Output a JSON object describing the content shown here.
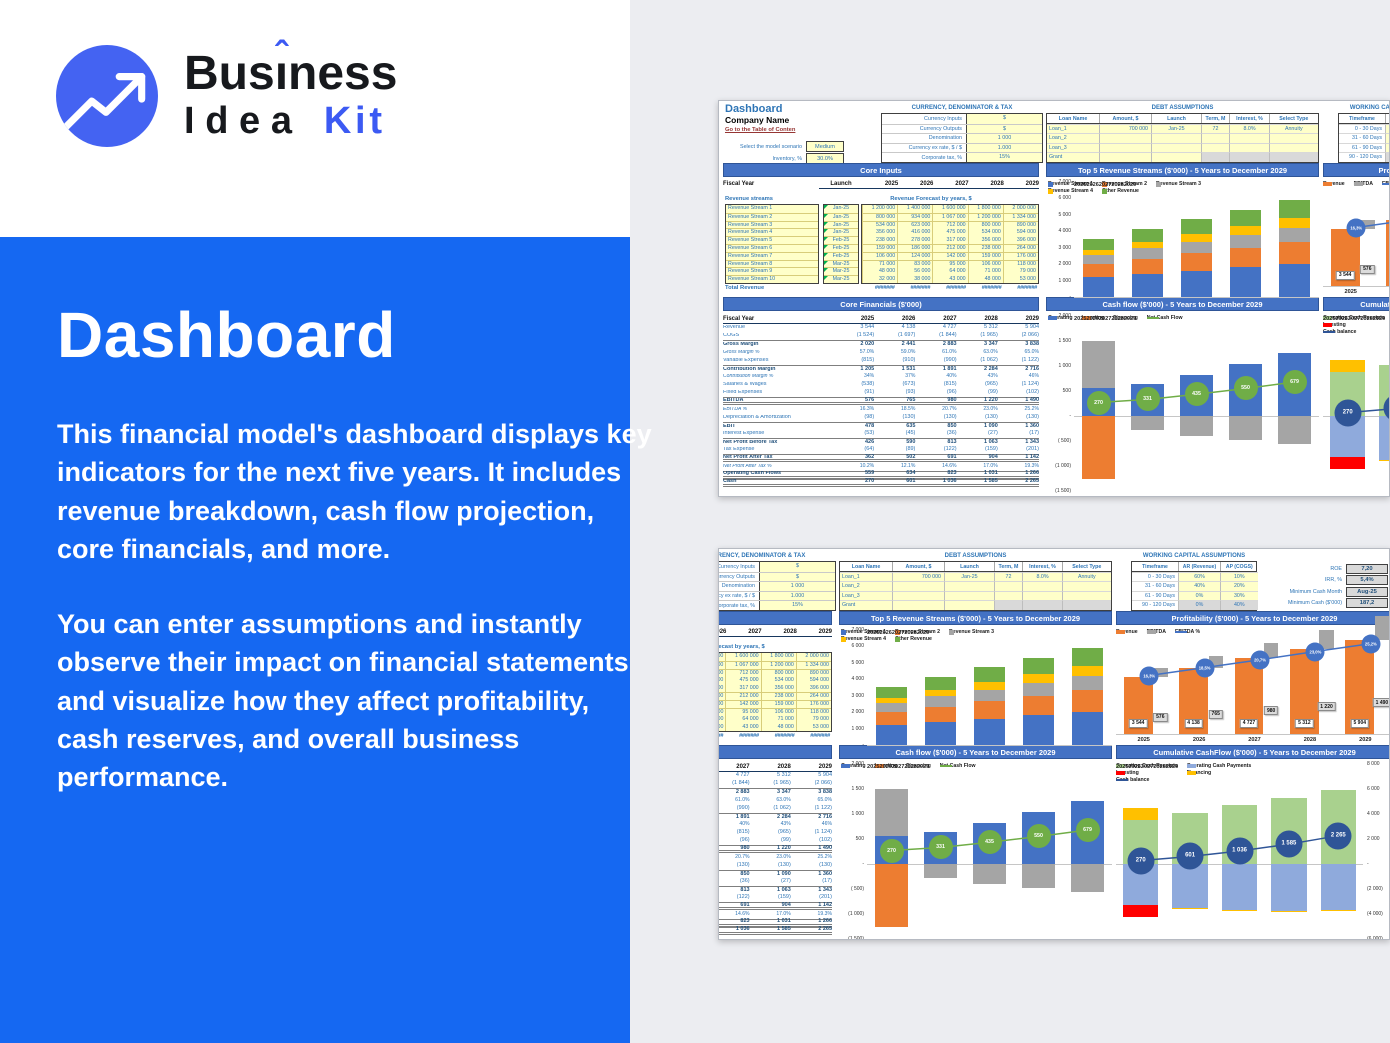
{
  "logo": {
    "business": "Business",
    "business_pre": "Bus",
    "business_i": "ı",
    "business_post": "ness",
    "idea": "Idea",
    "kit": "Kit",
    "accent_color": "#3C5AF3"
  },
  "hero": {
    "title": "Dashboard",
    "paragraph1": "This financial model's dashboard displays key indicators for the next five years. It includes revenue breakdown, cash flow projection, core financials, and more.",
    "paragraph2": "You can enter assumptions and instantly observe their impact on financial statements and visualize how they affect profitability, cash reserves, and overall business performance.",
    "panel_color": "#1568F2"
  },
  "dashboard": {
    "title": "Dashboard",
    "company": "Company Name",
    "toc_link": "Go to the Table of Conten",
    "scenario_label": "Select the model scenario",
    "scenario_value": "Medium",
    "inventory_label": "Inventory, %",
    "inventory_value": "30.0%",
    "currency_box": {
      "title": "CURRENCY, DENOMINATOR & TAX",
      "rows": [
        [
          "Currency Inputs",
          "$"
        ],
        [
          "Currency Outputs",
          "$"
        ],
        [
          "Denomination",
          "1 000"
        ],
        [
          "Currency ex rate, $ / $",
          "1.000"
        ],
        [
          "Corporate tax, %",
          "15%"
        ]
      ]
    },
    "debt_box": {
      "title": "DEBT ASSUMPTIONS",
      "headers": [
        "Loan Name",
        "Amount, $",
        "Launch",
        "Term, M",
        "Interest, %",
        "Select Type"
      ],
      "rows": [
        [
          "Loan_1",
          "700 000",
          "Jan-25",
          "72",
          "8.0%",
          "Annuity"
        ],
        [
          "Loan_2",
          "",
          "",
          "",
          "",
          ""
        ],
        [
          "Loan_3",
          "",
          "",
          "",
          "",
          ""
        ],
        [
          "Grant",
          "",
          "",
          "",
          "",
          ""
        ]
      ]
    },
    "wc_box": {
      "title": "WORKING CAPITAL ASSUMPTIONS",
      "headers": [
        "Timeframe",
        "AR (Revenue)",
        "AP (COGS)"
      ],
      "rows": [
        [
          "0 - 30 Days",
          "60%",
          "10%"
        ],
        [
          "31 - 60 Days",
          "40%",
          "20%"
        ],
        [
          "61 - 90 Days",
          "0%",
          "30%"
        ],
        [
          "90 - 120 Days",
          "0%",
          "40%"
        ]
      ]
    },
    "kpis": [
      [
        "ROE",
        "7,20"
      ],
      [
        "IRR, %",
        "5,4%"
      ],
      [
        "Minimum Cash Month",
        "Aug-25"
      ],
      [
        "Minimum Cash ($'000)",
        "187,2"
      ]
    ],
    "sections": {
      "core_inputs": "Core Inputs",
      "core_financials": "Core Financials ($'000)"
    },
    "core_inputs": {
      "fiscal_label": "Fiscal Year",
      "launch_label": "Launch",
      "years": [
        "2025",
        "2026",
        "2027",
        "2028",
        "2029"
      ],
      "streams_label": "Revenue streams",
      "forecast_label": "Revenue Forecast by years, $",
      "rows": [
        {
          "name": "Revenue Stream 1",
          "launch": "Jan-25",
          "values": [
            "1 200 000",
            "1 400 000",
            "1 600 000",
            "1 800 000",
            "2 000 000"
          ]
        },
        {
          "name": "Revenue Stream 2",
          "launch": "Jan-25",
          "values": [
            "800 000",
            "934 000",
            "1 067 000",
            "1 200 000",
            "1 334 000"
          ]
        },
        {
          "name": "Revenue Stream 3",
          "launch": "Jan-25",
          "values": [
            "534 000",
            "623 000",
            "712 000",
            "800 000",
            "890 000"
          ]
        },
        {
          "name": "Revenue Stream 4",
          "launch": "Jan-25",
          "values": [
            "356 000",
            "416 000",
            "475 000",
            "534 000",
            "594 000"
          ]
        },
        {
          "name": "Revenue Stream 5",
          "launch": "Feb-25",
          "values": [
            "238 000",
            "278 000",
            "317 000",
            "356 000",
            "396 000"
          ]
        },
        {
          "name": "Revenue Stream 6",
          "launch": "Feb-25",
          "values": [
            "159 000",
            "186 000",
            "212 000",
            "238 000",
            "264 000"
          ]
        },
        {
          "name": "Revenue Stream 7",
          "launch": "Feb-25",
          "values": [
            "106 000",
            "124 000",
            "142 000",
            "159 000",
            "176 000"
          ]
        },
        {
          "name": "Revenue Stream 8",
          "launch": "Mar-25",
          "values": [
            "71 000",
            "83 000",
            "95 000",
            "106 000",
            "118 000"
          ]
        },
        {
          "name": "Revenue Stream 9",
          "launch": "Mar-25",
          "values": [
            "48 000",
            "56 000",
            "64 000",
            "71 000",
            "79 000"
          ]
        },
        {
          "name": "Revenue Stream 10",
          "launch": "Mar-25",
          "values": [
            "32 000",
            "38 000",
            "43 000",
            "48 000",
            "53 000"
          ]
        }
      ],
      "total_label": "Total Revenue",
      "total_values": [
        "#######",
        "#######",
        "#######",
        "#######",
        "#######"
      ]
    },
    "core_financials": {
      "fiscal_label": "Fiscal Year",
      "years": [
        "2025",
        "2026",
        "2027",
        "2028",
        "2029"
      ],
      "rows": [
        {
          "label": "Revenue",
          "cls": "",
          "values": [
            "3 544",
            "4 138",
            "4 727",
            "5 312",
            "5 904"
          ]
        },
        {
          "label": "COGS",
          "cls": "",
          "values": [
            "(1 524)",
            "(1 697)",
            "(1 844)",
            "(1 965)",
            "(2 066)"
          ]
        },
        {
          "label": "Gross Margin",
          "cls": "bold",
          "values": [
            "2 020",
            "2 441",
            "2 883",
            "3 347",
            "3 838"
          ]
        },
        {
          "label": "Gross Margin %",
          "cls": "pct",
          "values": [
            "57.0%",
            "59.0%",
            "61.0%",
            "63.0%",
            "65.0%"
          ]
        },
        {
          "label": "Variable Expenses",
          "cls": "",
          "values": [
            "(815)",
            "(910)",
            "(990)",
            "(1 062)",
            "(1 122)"
          ]
        },
        {
          "label": "Contribution Margin",
          "cls": "bold",
          "values": [
            "1 205",
            "1 531",
            "1 891",
            "2 284",
            "2 716"
          ]
        },
        {
          "label": "Contribution Margin %",
          "cls": "pct",
          "values": [
            "34%",
            "37%",
            "40%",
            "43%",
            "46%"
          ]
        },
        {
          "label": "Salaries & Wages",
          "cls": "",
          "values": [
            "(538)",
            "(673)",
            "(815)",
            "(965)",
            "(1 124)"
          ]
        },
        {
          "label": "Fixed Expenses",
          "cls": "",
          "values": [
            "(91)",
            "(93)",
            "(96)",
            "(99)",
            "(102)"
          ]
        },
        {
          "label": "EBITDA",
          "cls": "strong",
          "values": [
            "576",
            "765",
            "980",
            "1 220",
            "1 490"
          ]
        },
        {
          "label": "EBITDA %",
          "cls": "pct",
          "values": [
            "16.3%",
            "18.5%",
            "20.7%",
            "23.0%",
            "25.2%"
          ]
        },
        {
          "label": "Depreciation & Amortization",
          "cls": "",
          "values": [
            "(98)",
            "(130)",
            "(130)",
            "(130)",
            "(130)"
          ]
        },
        {
          "label": "EBIT",
          "cls": "bold",
          "values": [
            "478",
            "635",
            "850",
            "1 090",
            "1 360"
          ]
        },
        {
          "label": "Interest Expense",
          "cls": "",
          "values": [
            "(53)",
            "(45)",
            "(36)",
            "(27)",
            "(17)"
          ]
        },
        {
          "label": "Net Profit Before Tax",
          "cls": "bold",
          "values": [
            "426",
            "590",
            "813",
            "1 063",
            "1 343"
          ]
        },
        {
          "label": "Tax Expense",
          "cls": "",
          "values": [
            "(64)",
            "(89)",
            "(122)",
            "(159)",
            "(201)"
          ]
        },
        {
          "label": "Net Profit After Tax",
          "cls": "strong",
          "values": [
            "362",
            "502",
            "691",
            "904",
            "1 142"
          ]
        },
        {
          "label": "Net Profit After Tax %",
          "cls": "pct",
          "values": [
            "10.2%",
            "12.1%",
            "14.6%",
            "17.0%",
            "19.3%"
          ]
        },
        {
          "label": "Operating Cash Flows",
          "cls": "strong",
          "values": [
            "559",
            "634",
            "823",
            "1 031",
            "1 266"
          ]
        },
        {
          "label": "Cash",
          "cls": "strong",
          "values": [
            "270",
            "601",
            "1 036",
            "1 585",
            "2 265"
          ]
        }
      ]
    }
  },
  "chart_data": [
    {
      "id": "top5_revenue",
      "type": "bar",
      "stacked": true,
      "title": "Top 5 Revenue Streams ($'000) - 5 Years to December 2029",
      "categories": [
        "2025",
        "2026",
        "2027",
        "2028",
        "2029"
      ],
      "series": [
        {
          "name": "Revenue Stream 1",
          "color": "#4472C4",
          "values": [
            1200,
            1400,
            1600,
            1800,
            2000
          ]
        },
        {
          "name": "Revenue Stream 2",
          "color": "#ED7D31",
          "values": [
            800,
            934,
            1067,
            1200,
            1334
          ]
        },
        {
          "name": "Revenue Stream 3",
          "color": "#A5A5A5",
          "values": [
            534,
            623,
            712,
            800,
            890
          ]
        },
        {
          "name": "Revenue Stream 4",
          "color": "#FFC000",
          "values": [
            356,
            416,
            475,
            534,
            594
          ]
        },
        {
          "name": "Other Revenue",
          "color": "#70AD47",
          "values": [
            654,
            765,
            873,
            978,
            1086
          ]
        }
      ],
      "ylim": [
        0,
        7000
      ],
      "yticks": [
        "7 000",
        "6 000",
        "5 000",
        "4 000",
        "3 000",
        "2 000",
        "1 000",
        "-"
      ],
      "axis": "left",
      "marker": "sq",
      "legend_cols": 3,
      "bw": 0.62
    },
    {
      "id": "profitability",
      "type": "bar",
      "stacked": false,
      "grouped": true,
      "title": "Profitability ($'000) - 5 Years to December 2029",
      "categories": [
        "2025",
        "2026",
        "2027",
        "2028",
        "2029"
      ],
      "series": [
        {
          "name": "Revenue",
          "color": "#ED7D31",
          "values": [
            3544,
            4138,
            4727,
            5312,
            5904
          ],
          "labels": [
            "3 544",
            "4 138",
            "4 727",
            "5 312",
            "5 904"
          ],
          "off": 0.4,
          "bw": 0.52
        },
        {
          "name": "EBITDA",
          "color": "#A5A5A5",
          "values": [
            576,
            765,
            980,
            1220,
            1490
          ],
          "labels": [
            "576",
            "765",
            "980",
            "1 220",
            "1 490"
          ],
          "off": 0.8,
          "bw": 0.26,
          "label_pos": "top",
          "label_bg": "#DCDCDC"
        }
      ],
      "line": {
        "name": "EBITDA %",
        "color": "#4472C4",
        "values": [
          16.3,
          18.5,
          20.7,
          23.0,
          25.2
        ],
        "labels": [
          "16,3%",
          "18,5%",
          "20,7%",
          "23,0%",
          "25,2%"
        ],
        "ylim": [
          0,
          29
        ],
        "bub": 19,
        "xoff": 0.6
      },
      "ylim": [
        0,
        6500
      ],
      "axis": "none",
      "legend_cols": 3
    },
    {
      "id": "cashflow",
      "type": "bar",
      "stacked": true,
      "title": "Cash flow ($'000) - 5 Years to December 2029",
      "categories": [
        "2025",
        "2026",
        "2027",
        "2028",
        "2029"
      ],
      "series": [
        {
          "name": "Operating",
          "color": "#4472C4",
          "values": [
            559,
            634,
            823,
            1031,
            1266
          ]
        },
        {
          "name": "Investing",
          "color": "#ED7D31",
          "values": [
            -1250,
            0,
            0,
            0,
            0
          ]
        },
        {
          "name": "Financing",
          "color": "#A5A5A5",
          "values": [
            940,
            -280,
            -400,
            -480,
            -560
          ]
        }
      ],
      "line": {
        "name": "Net Cash Flow",
        "color": "#70AD47",
        "values": [
          270,
          331,
          435,
          550,
          679
        ],
        "labels": [
          "270",
          "331",
          "435",
          "550",
          "679"
        ],
        "bub": 24,
        "xoff": 0.5
      },
      "ylim": [
        -1500,
        2000
      ],
      "yticks": [
        "2 000",
        "1 500",
        "1 000",
        "500",
        "-",
        "( 500)",
        "(1 000)",
        "(1 500)"
      ],
      "axis": "left",
      "legend_cols": 4,
      "bw": 0.68
    },
    {
      "id": "cumulative",
      "type": "bar",
      "stacked": true,
      "title": "Cumulative CashFlow ($'000) - 5 Years to December 2029",
      "categories": [
        "2025",
        "2026",
        "2027",
        "2028",
        "2029"
      ],
      "series": [
        {
          "name": "Operating Cash Receipts",
          "color": "#A9D18E",
          "values": [
            3550,
            4100,
            4700,
            5300,
            5900
          ]
        },
        {
          "name": "Operating Cash Payments",
          "color": "#8FAADC",
          "values": [
            -3270,
            -3540,
            -3690,
            -3730,
            -3640
          ]
        },
        {
          "name": "Investing",
          "color": "#FF0000",
          "values": [
            -1000,
            0,
            0,
            0,
            0
          ]
        },
        {
          "name": "Financing",
          "color": "#FFC000",
          "values": [
            900,
            -60,
            -110,
            -90,
            -120
          ]
        }
      ],
      "line": {
        "name": "Cash balance",
        "color": "#2F5597",
        "values": [
          270,
          601,
          1036,
          1585,
          2265
        ],
        "labels": [
          "270",
          "601",
          "1 036",
          "1 585",
          "2 265"
        ],
        "bub": 27,
        "xoff": 0.5
      },
      "ylim": [
        -6000,
        8000
      ],
      "yticks": [
        "8 000",
        "6 000",
        "4 000",
        "2 000",
        "-",
        "(2 000)",
        "(4 000)",
        "(6 000)"
      ],
      "axis": "right",
      "legend_cols": 2,
      "bw": 0.72
    }
  ]
}
